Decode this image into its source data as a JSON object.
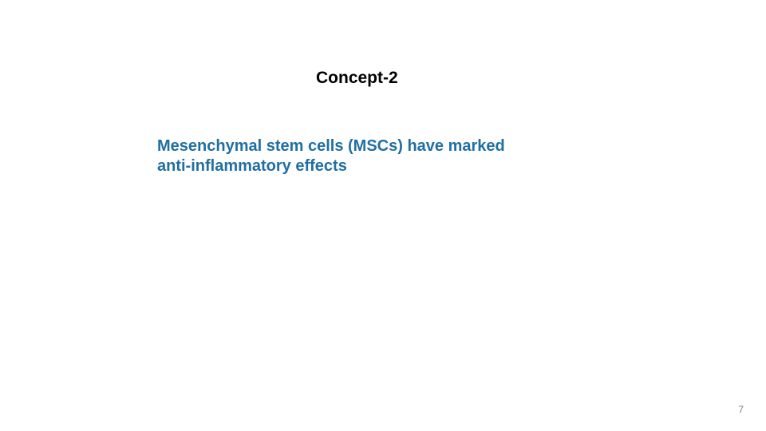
{
  "slide": {
    "title": {
      "text": "Concept-2",
      "color": "#000000",
      "fontsize": 21
    },
    "body": {
      "line1": "Mesenchymal stem cells (MSCs) have marked",
      "line2": "anti-inflammatory effects",
      "color": "#1f6fa3",
      "fontsize": 20
    },
    "page_number": {
      "text": "7",
      "color": "#808080",
      "fontsize": 12
    },
    "background_color": "#ffffff"
  }
}
